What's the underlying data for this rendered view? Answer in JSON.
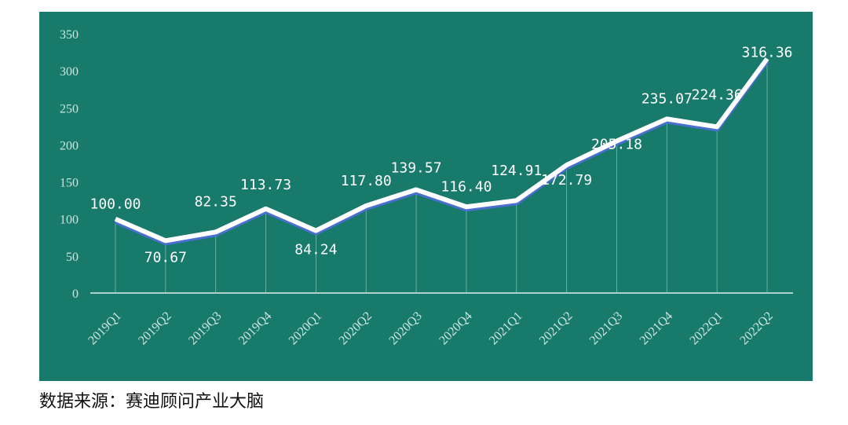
{
  "chart_data": {
    "type": "line",
    "categories": [
      "2019Q1",
      "2019Q2",
      "2019Q3",
      "2019Q4",
      "2020Q1",
      "2020Q2",
      "2020Q3",
      "2020Q4",
      "2021Q1",
      "2021Q2",
      "2021Q3",
      "2021Q4",
      "2022Q1",
      "2022Q2"
    ],
    "values": [
      100.0,
      70.67,
      82.35,
      113.73,
      84.24,
      117.8,
      139.57,
      116.4,
      124.91,
      172.79,
      205.18,
      235.07,
      224.36,
      316.36
    ],
    "value_labels": [
      "100.00",
      "70.67",
      "82.35",
      "113.73",
      "84.24",
      "117.80",
      "139.57",
      "116.40",
      "124.91",
      "172.79",
      "205.18",
      "235.07",
      "224.36",
      "316.36"
    ],
    "color": "#ffffff",
    "ylim": [
      0,
      350
    ],
    "yticks": [
      0,
      50,
      100,
      150,
      200,
      250,
      300,
      350
    ],
    "source": "数据来源：赛迪顾问产业大脑"
  }
}
